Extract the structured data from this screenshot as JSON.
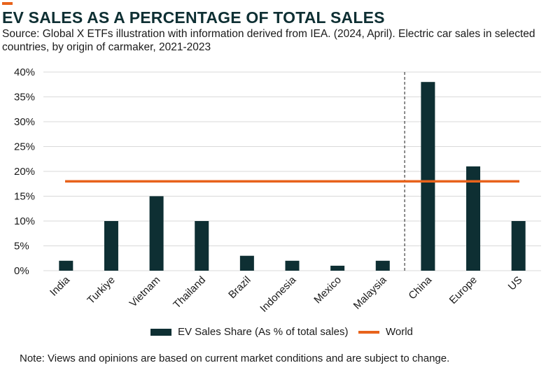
{
  "header": {
    "title": "EV SALES AS A PERCENTAGE OF TOTAL SALES",
    "subtitle": "Source: Global X ETFs illustration with information derived from IEA. (2024, April). Electric car sales in selected countries, by origin of carmaker, 2021-2023"
  },
  "colors": {
    "bar": "#0e2f33",
    "world_line": "#e8631c",
    "grid": "#d9d9d9",
    "accent": "#e8631c"
  },
  "chart_data": {
    "type": "bar",
    "title": "EV SALES AS A PERCENTAGE OF TOTAL SALES",
    "categories": [
      "India",
      "Turkiye",
      "Vietnam",
      "Thailand",
      "Brazil",
      "Indonesia",
      "Mexico",
      "Malaysia",
      "China",
      "Europe",
      "US"
    ],
    "series": [
      {
        "name": "EV Sales Share (As % of total sales)",
        "values": [
          2,
          10,
          15,
          10,
          3,
          2,
          1,
          2,
          38,
          21,
          10
        ]
      }
    ],
    "reference_lines": [
      {
        "name": "World",
        "value": 18
      }
    ],
    "divider_after_category": "Malaysia",
    "ylim": [
      0,
      40
    ],
    "y_ticks": [
      "0%",
      "5%",
      "10%",
      "15%",
      "20%",
      "25%",
      "30%",
      "35%",
      "40%"
    ],
    "grid": true,
    "legend_position": "bottom"
  },
  "legend": {
    "bar_label": "EV Sales Share (As % of total sales)",
    "line_label": "World"
  },
  "note": "Note: Views and opinions are based on current market conditions and are subject to change."
}
